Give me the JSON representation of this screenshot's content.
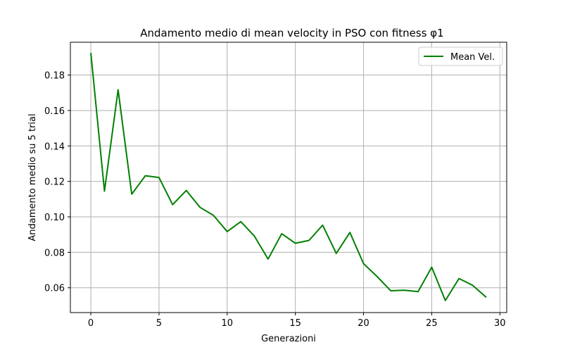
{
  "chart_data": {
    "type": "line",
    "title": "Andamento medio di mean velocity in PSO con fitness φ1",
    "xlabel": "Generazioni",
    "ylabel": "Andamento medio su 5 trial",
    "xlim": [
      -1.5,
      30.5
    ],
    "ylim": [
      0.046,
      0.1985
    ],
    "xticks": [
      0,
      5,
      10,
      15,
      20,
      25,
      30
    ],
    "xtick_labels": [
      "0",
      "5",
      "10",
      "15",
      "20",
      "25",
      "30"
    ],
    "yticks": [
      0.06,
      0.08,
      0.1,
      0.12,
      0.14,
      0.16,
      0.18
    ],
    "ytick_labels": [
      "0.06",
      "0.08",
      "0.10",
      "0.12",
      "0.14",
      "0.16",
      "0.18"
    ],
    "grid": true,
    "legend_position": "top-right",
    "series": [
      {
        "name": "Mean Vel.",
        "color": "#008000",
        "x": [
          0,
          1,
          2,
          3,
          4,
          5,
          6,
          7,
          8,
          9,
          10,
          11,
          12,
          13,
          14,
          15,
          16,
          17,
          18,
          19,
          20,
          21,
          22,
          23,
          24,
          25,
          26,
          27,
          28,
          29
        ],
        "values": [
          0.1925,
          0.1145,
          0.1717,
          0.1128,
          0.1232,
          0.1222,
          0.1069,
          0.1149,
          0.1054,
          0.1008,
          0.0917,
          0.0973,
          0.0891,
          0.0762,
          0.0905,
          0.0851,
          0.0867,
          0.0953,
          0.0794,
          0.0912,
          0.0736,
          0.0663,
          0.0583,
          0.0586,
          0.0578,
          0.0716,
          0.0528,
          0.0652,
          0.0614,
          0.0546
        ]
      }
    ]
  }
}
